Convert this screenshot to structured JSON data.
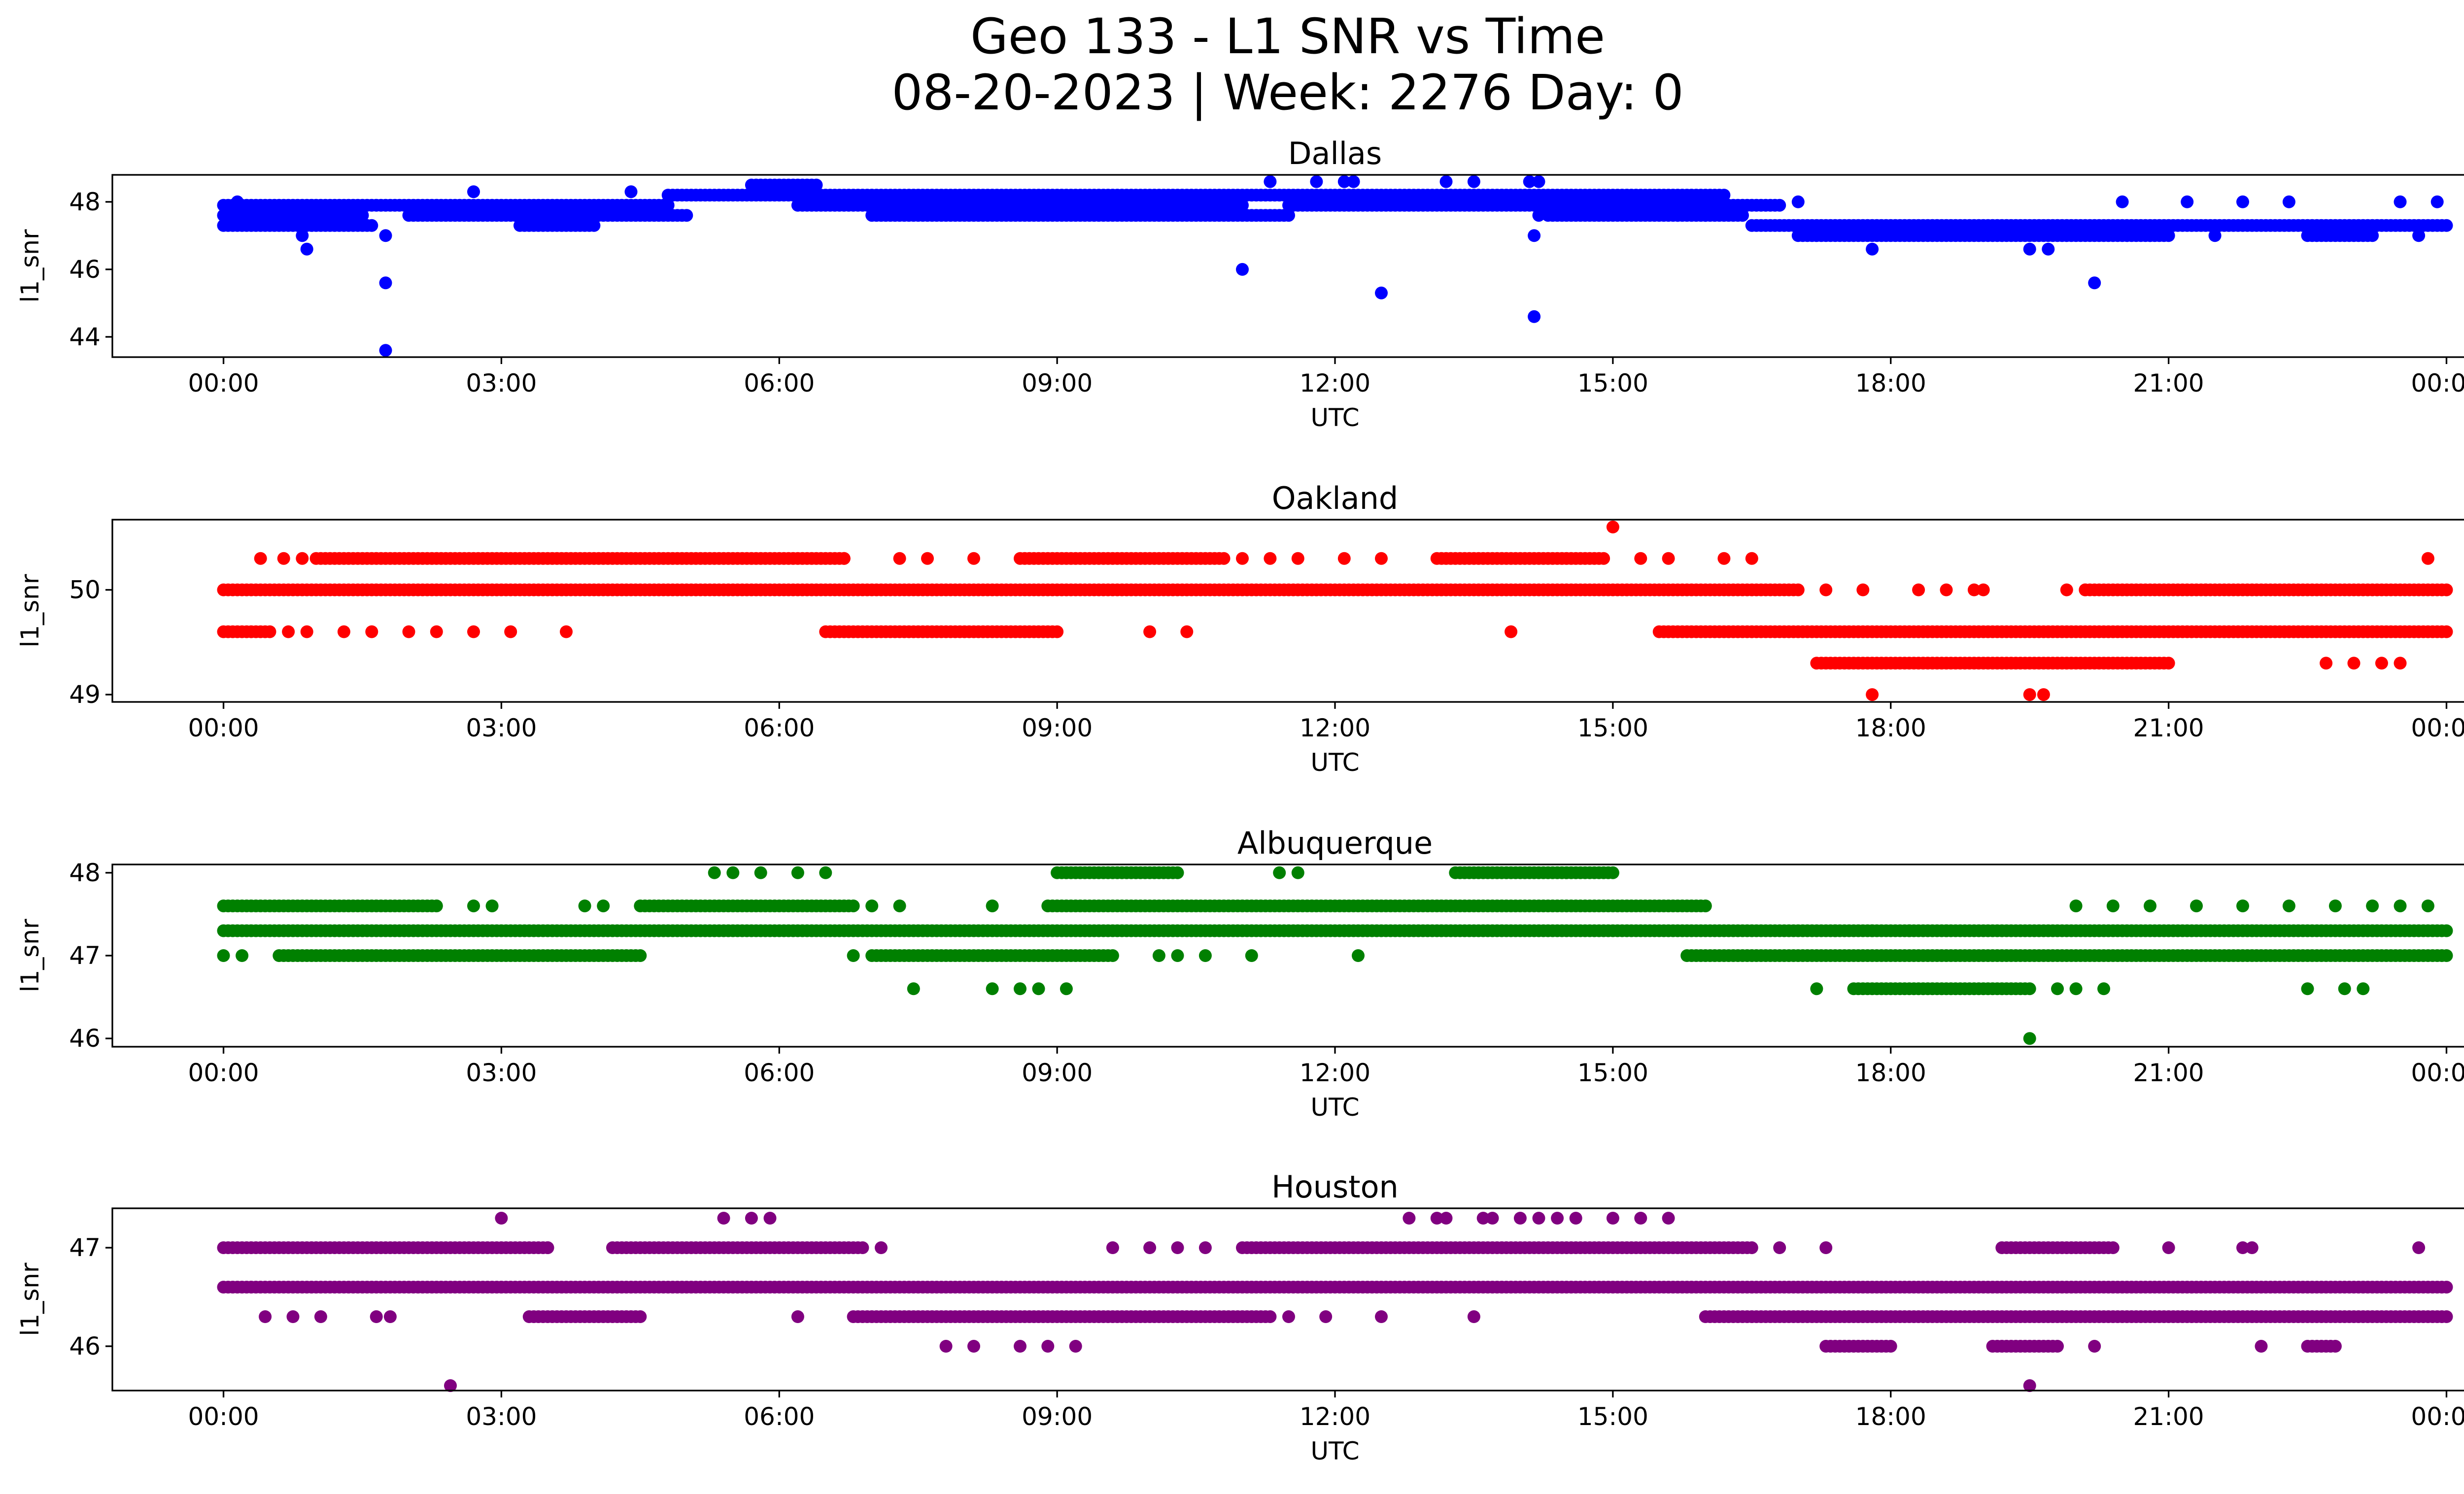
{
  "figure": {
    "title_line1": "Geo 133 - L1 SNR vs Time",
    "title_line2": "08-20-2023 | Week: 2276 Day: 0"
  },
  "chart_data": [
    {
      "type": "scatter",
      "title": "Dallas",
      "xlabel": "UTC",
      "ylabel": "l1_snr",
      "color": "#0000ff",
      "x_ticks": [
        "00:00",
        "03:00",
        "06:00",
        "09:00",
        "12:00",
        "15:00",
        "18:00",
        "21:00",
        "00:00"
      ],
      "y_ticks": [
        44,
        46,
        48
      ],
      "xlim_hours": [
        -1.2,
        25.2
      ],
      "ylim": [
        43.4,
        48.8
      ],
      "bands": [
        {
          "y": 47.6,
          "segments": [
            [
              0.0,
              1.5
            ],
            [
              2.0,
              5.0
            ],
            [
              7.0,
              11.5
            ],
            [
              14.3,
              16.4
            ]
          ]
        },
        {
          "y": 47.3,
          "segments": [
            [
              0.0,
              1.6
            ],
            [
              3.2,
              4.0
            ],
            [
              16.5,
              24.0
            ]
          ]
        },
        {
          "y": 47.9,
          "segments": [
            [
              0.0,
              4.8
            ],
            [
              6.2,
              11.0
            ],
            [
              11.5,
              16.8
            ]
          ]
        },
        {
          "y": 48.2,
          "segments": [
            [
              4.8,
              16.2
            ]
          ]
        },
        {
          "y": 47.0,
          "segments": [
            [
              17.0,
              21.0
            ],
            [
              22.5,
              23.2
            ]
          ]
        },
        {
          "y": 48.5,
          "segments": [
            [
              5.7,
              6.4
            ]
          ]
        }
      ],
      "points": [
        [
          0.15,
          48.0
        ],
        [
          0.85,
          47.0
        ],
        [
          0.9,
          46.6
        ],
        [
          1.75,
          43.6
        ],
        [
          1.75,
          45.6
        ],
        [
          1.75,
          47.0
        ],
        [
          2.7,
          48.3
        ],
        [
          4.4,
          48.3
        ],
        [
          11.0,
          46.0
        ],
        [
          11.3,
          48.6
        ],
        [
          11.8,
          48.6
        ],
        [
          12.1,
          48.6
        ],
        [
          12.2,
          48.6
        ],
        [
          12.5,
          45.3
        ],
        [
          13.2,
          48.6
        ],
        [
          13.5,
          48.6
        ],
        [
          14.1,
          48.6
        ],
        [
          14.2,
          48.6
        ],
        [
          14.15,
          47.0
        ],
        [
          14.15,
          44.6
        ],
        [
          14.2,
          47.6
        ],
        [
          15.7,
          47.6
        ],
        [
          16.0,
          47.6
        ],
        [
          17.0,
          48.0
        ],
        [
          17.8,
          46.6
        ],
        [
          19.5,
          46.6
        ],
        [
          19.7,
          46.6
        ],
        [
          20.2,
          45.6
        ],
        [
          20.5,
          48.0
        ],
        [
          20.8,
          47.0
        ],
        [
          21.2,
          48.0
        ],
        [
          21.5,
          47.0
        ],
        [
          21.8,
          48.0
        ],
        [
          22.3,
          48.0
        ],
        [
          23.5,
          48.0
        ],
        [
          23.7,
          47.0
        ],
        [
          23.9,
          48.0
        ]
      ]
    },
    {
      "type": "scatter",
      "title": "Oakland",
      "xlabel": "UTC",
      "ylabel": "l1_snr",
      "color": "#ff0000",
      "x_ticks": [
        "00:00",
        "03:00",
        "06:00",
        "09:00",
        "12:00",
        "15:00",
        "18:00",
        "21:00",
        "00:00"
      ],
      "y_ticks": [
        49,
        50
      ],
      "xlim_hours": [
        -1.2,
        25.2
      ],
      "ylim": [
        48.93,
        50.67
      ],
      "bands": [
        {
          "y": 50.0,
          "segments": [
            [
              0.0,
              17.0
            ],
            [
              20.1,
              24.0
            ]
          ]
        },
        {
          "y": 49.6,
          "segments": [
            [
              0.0,
              0.5
            ],
            [
              6.5,
              9.0
            ],
            [
              15.5,
              24.0
            ]
          ]
        },
        {
          "y": 50.3,
          "segments": [
            [
              1.0,
              6.7
            ],
            [
              8.6,
              10.8
            ],
            [
              13.1,
              14.9
            ]
          ]
        },
        {
          "y": 49.3,
          "segments": [
            [
              17.2,
              21.0
            ]
          ]
        }
      ],
      "points": [
        [
          0.4,
          50.3
        ],
        [
          0.65,
          50.3
        ],
        [
          0.85,
          50.3
        ],
        [
          0.7,
          49.6
        ],
        [
          0.9,
          49.6
        ],
        [
          1.3,
          49.6
        ],
        [
          1.6,
          49.6
        ],
        [
          2.0,
          49.6
        ],
        [
          2.3,
          49.6
        ],
        [
          2.7,
          49.6
        ],
        [
          3.1,
          49.6
        ],
        [
          3.7,
          49.6
        ],
        [
          6.7,
          50.3
        ],
        [
          7.3,
          50.3
        ],
        [
          7.6,
          50.3
        ],
        [
          8.1,
          50.3
        ],
        [
          10.0,
          49.6
        ],
        [
          10.4,
          49.6
        ],
        [
          11.0,
          50.3
        ],
        [
          11.3,
          50.3
        ],
        [
          11.6,
          50.3
        ],
        [
          12.1,
          50.3
        ],
        [
          12.5,
          50.3
        ],
        [
          13.9,
          49.6
        ],
        [
          15.0,
          50.6
        ],
        [
          15.3,
          50.3
        ],
        [
          15.6,
          50.3
        ],
        [
          16.2,
          50.3
        ],
        [
          16.5,
          50.3
        ],
        [
          17.3,
          50.0
        ],
        [
          17.7,
          50.0
        ],
        [
          18.3,
          50.0
        ],
        [
          18.6,
          50.0
        ],
        [
          18.9,
          50.0
        ],
        [
          19.0,
          50.0
        ],
        [
          17.8,
          49.0
        ],
        [
          19.5,
          49.0
        ],
        [
          19.65,
          49.0
        ],
        [
          19.9,
          50.0
        ],
        [
          20.1,
          50.0
        ],
        [
          21.4,
          50.0
        ],
        [
          22.7,
          49.3
        ],
        [
          23.0,
          49.3
        ],
        [
          23.3,
          49.3
        ],
        [
          23.5,
          49.3
        ],
        [
          23.8,
          50.3
        ]
      ]
    },
    {
      "type": "scatter",
      "title": "Albuquerque",
      "xlabel": "UTC",
      "ylabel": "l1_snr",
      "color": "#008000",
      "x_ticks": [
        "00:00",
        "03:00",
        "06:00",
        "09:00",
        "12:00",
        "15:00",
        "18:00",
        "21:00",
        "00:00"
      ],
      "y_ticks": [
        46,
        47,
        48
      ],
      "xlim_hours": [
        -1.2,
        25.2
      ],
      "ylim": [
        45.9,
        48.1
      ],
      "bands": [
        {
          "y": 47.3,
          "segments": [
            [
              0.0,
              24.0
            ]
          ]
        },
        {
          "y": 47.6,
          "segments": [
            [
              0.0,
              2.3
            ],
            [
              4.5,
              6.8
            ],
            [
              8.9,
              16.0
            ]
          ]
        },
        {
          "y": 47.0,
          "segments": [
            [
              0.6,
              4.5
            ],
            [
              7.0,
              9.6
            ],
            [
              15.8,
              24.0
            ]
          ]
        },
        {
          "y": 46.6,
          "segments": [
            [
              17.6,
              19.5
            ]
          ]
        },
        {
          "y": 48.0,
          "segments": [
            [
              9.0,
              10.3
            ],
            [
              13.3,
              15.0
            ]
          ]
        }
      ],
      "points": [
        [
          0.0,
          47.0
        ],
        [
          0.2,
          47.0
        ],
        [
          2.7,
          47.6
        ],
        [
          2.9,
          47.6
        ],
        [
          3.9,
          47.6
        ],
        [
          4.1,
          47.6
        ],
        [
          5.3,
          48.0
        ],
        [
          5.5,
          48.0
        ],
        [
          5.8,
          48.0
        ],
        [
          6.2,
          48.0
        ],
        [
          6.5,
          48.0
        ],
        [
          7.0,
          47.6
        ],
        [
          7.3,
          47.6
        ],
        [
          7.45,
          46.6
        ],
        [
          6.8,
          47.0
        ],
        [
          8.3,
          47.6
        ],
        [
          8.3,
          46.6
        ],
        [
          8.6,
          46.6
        ],
        [
          8.8,
          46.6
        ],
        [
          9.1,
          46.6
        ],
        [
          10.1,
          47.0
        ],
        [
          10.3,
          47.0
        ],
        [
          10.6,
          47.0
        ],
        [
          11.1,
          47.0
        ],
        [
          12.25,
          47.0
        ],
        [
          11.4,
          48.0
        ],
        [
          11.6,
          48.0
        ],
        [
          17.2,
          46.6
        ],
        [
          19.8,
          46.6
        ],
        [
          20.0,
          46.6
        ],
        [
          20.3,
          46.6
        ],
        [
          19.5,
          46.0
        ],
        [
          17.4,
          47.3
        ],
        [
          17.8,
          47.3
        ],
        [
          18.2,
          47.3
        ],
        [
          18.6,
          47.3
        ],
        [
          20.0,
          47.6
        ],
        [
          20.4,
          47.6
        ],
        [
          20.8,
          47.6
        ],
        [
          21.3,
          47.6
        ],
        [
          21.8,
          47.6
        ],
        [
          22.3,
          47.6
        ],
        [
          22.8,
          47.6
        ],
        [
          23.2,
          47.6
        ],
        [
          23.5,
          47.6
        ],
        [
          23.8,
          47.6
        ],
        [
          22.5,
          46.6
        ],
        [
          22.9,
          46.6
        ],
        [
          23.1,
          46.6
        ]
      ]
    },
    {
      "type": "scatter",
      "title": "Houston",
      "xlabel": "UTC",
      "ylabel": "l1_snr",
      "color": "#800080",
      "x_ticks": [
        "00:00",
        "03:00",
        "06:00",
        "09:00",
        "12:00",
        "15:00",
        "18:00",
        "21:00",
        "00:00"
      ],
      "y_ticks": [
        46,
        47
      ],
      "xlim_hours": [
        -1.2,
        25.2
      ],
      "ylim": [
        45.55,
        47.4
      ],
      "bands": [
        {
          "y": 46.6,
          "segments": [
            [
              0.0,
              24.0
            ]
          ]
        },
        {
          "y": 47.0,
          "segments": [
            [
              0.0,
              3.5
            ],
            [
              4.2,
              6.9
            ],
            [
              11.0,
              16.5
            ],
            [
              19.2,
              20.4
            ]
          ]
        },
        {
          "y": 46.3,
          "segments": [
            [
              3.3,
              4.5
            ],
            [
              6.8,
              11.3
            ],
            [
              16.0,
              24.0
            ]
          ]
        },
        {
          "y": 46.0,
          "segments": [
            [
              17.3,
              18.0
            ],
            [
              19.1,
              19.8
            ],
            [
              22.5,
              22.8
            ]
          ]
        }
      ],
      "points": [
        [
          0.45,
          46.3
        ],
        [
          0.75,
          46.3
        ],
        [
          1.05,
          46.3
        ],
        [
          1.65,
          46.3
        ],
        [
          1.8,
          46.3
        ],
        [
          2.45,
          45.6
        ],
        [
          3.0,
          47.3
        ],
        [
          3.5,
          47.0
        ],
        [
          5.4,
          47.3
        ],
        [
          5.7,
          47.3
        ],
        [
          5.9,
          47.3
        ],
        [
          6.2,
          46.3
        ],
        [
          7.1,
          47.0
        ],
        [
          7.8,
          46.0
        ],
        [
          8.1,
          46.0
        ],
        [
          8.6,
          46.0
        ],
        [
          8.9,
          46.0
        ],
        [
          9.2,
          46.0
        ],
        [
          9.6,
          47.0
        ],
        [
          10.0,
          47.0
        ],
        [
          10.3,
          47.0
        ],
        [
          10.6,
          47.0
        ],
        [
          11.5,
          46.3
        ],
        [
          11.9,
          46.3
        ],
        [
          12.5,
          46.3
        ],
        [
          13.5,
          46.3
        ],
        [
          12.8,
          47.3
        ],
        [
          13.1,
          47.3
        ],
        [
          13.2,
          47.3
        ],
        [
          13.6,
          47.3
        ],
        [
          13.7,
          47.3
        ],
        [
          14.0,
          47.3
        ],
        [
          14.2,
          47.3
        ],
        [
          14.4,
          47.3
        ],
        [
          14.6,
          47.3
        ],
        [
          15.0,
          47.3
        ],
        [
          15.3,
          47.3
        ],
        [
          15.6,
          47.3
        ],
        [
          16.8,
          47.0
        ],
        [
          17.3,
          47.0
        ],
        [
          19.5,
          45.6
        ],
        [
          20.2,
          46.0
        ],
        [
          21.0,
          47.0
        ],
        [
          21.8,
          47.0
        ],
        [
          22.0,
          46.0
        ],
        [
          21.9,
          47.0
        ],
        [
          23.7,
          47.0
        ]
      ]
    }
  ]
}
